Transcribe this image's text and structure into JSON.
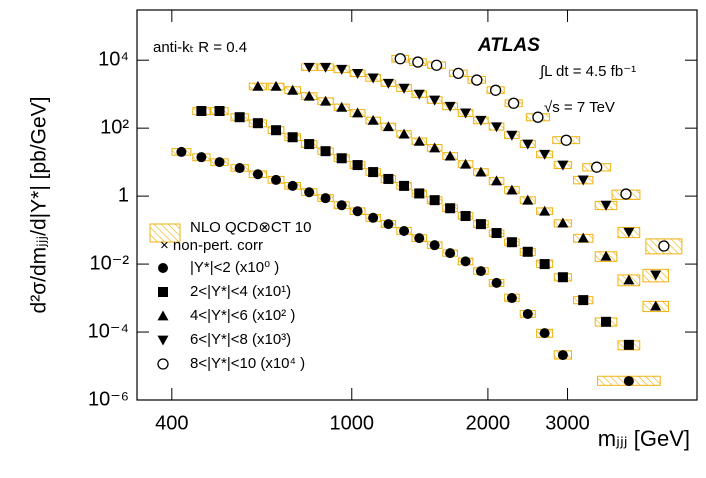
{
  "chart_data": {
    "type": "scatter",
    "xlabel": "mⱼⱼⱼ [GeV]",
    "ylabel": "d²σ/dmⱼⱼⱼ/d|Y*| [pb/GeV]",
    "annotations": [
      "anti-kₜ R = 0.4",
      "ATLAS",
      "∫L dt = 4.5 fb⁻¹",
      "√s = 7 TeV"
    ],
    "theory_legend": [
      "NLO QCD⊗CT 10",
      "× non-pert. corr"
    ],
    "theory_color": "#efb20f",
    "xscale": "log",
    "yscale": "log",
    "xlim": [
      335,
      5800
    ],
    "ylim": [
      1e-06,
      300000
    ],
    "xticks": [
      400,
      1000,
      2000,
      3000
    ],
    "yticks": [
      {
        "value": 1e-06,
        "label": "10⁻⁶"
      },
      {
        "value": 0.0001,
        "label": "10⁻⁴"
      },
      {
        "value": 0.01,
        "label": "10⁻²"
      },
      1,
      {
        "value": 100,
        "label": "10²"
      },
      {
        "value": 10000,
        "label": "10⁴"
      }
    ],
    "series": [
      {
        "name": "|Y*|<2 (x10⁰ )",
        "marker": "circle",
        "color": "#000000",
        "x": [
          420,
          465,
          510,
          565,
          620,
          680,
          740,
          805,
          875,
          950,
          1030,
          1115,
          1205,
          1305,
          1410,
          1525,
          1650,
          1785,
          1930,
          2090,
          2260,
          2450,
          2670,
          2930,
          4100
        ],
        "values": [
          20,
          14,
          10,
          6.7,
          4.4,
          3.0,
          2.0,
          1.3,
          0.87,
          0.54,
          0.36,
          0.23,
          0.15,
          0.094,
          0.058,
          0.036,
          0.021,
          0.012,
          0.0062,
          0.0028,
          0.001,
          0.00034,
          9.3e-05,
          2.1e-05,
          3.6e-06
        ],
        "theory": [
          [
            16,
            25
          ],
          [
            11,
            17.5
          ],
          [
            8,
            12.5
          ],
          [
            5.4,
            8.4
          ],
          [
            3.5,
            5.5
          ],
          [
            2.4,
            3.8
          ],
          [
            1.6,
            2.5
          ],
          [
            1.05,
            1.65
          ],
          [
            0.7,
            1.1
          ],
          [
            0.43,
            0.68
          ],
          [
            0.29,
            0.45
          ],
          [
            0.18,
            0.29
          ],
          [
            0.12,
            0.19
          ],
          [
            0.075,
            0.12
          ],
          [
            0.046,
            0.073
          ],
          [
            0.029,
            0.045
          ],
          [
            0.017,
            0.026
          ],
          [
            0.0095,
            0.015
          ],
          [
            0.005,
            0.0078
          ],
          [
            0.0022,
            0.0035
          ],
          [
            0.0008,
            0.0013
          ],
          [
            0.00027,
            0.00043
          ],
          [
            7e-05,
            0.00012
          ],
          [
            1.6e-05,
            2.8e-05
          ],
          [
            2.7e-06,
            5e-06
          ]
        ]
      },
      {
        "name": "2<|Y*|<4  (x10¹)",
        "marker": "square",
        "color": "#000000",
        "x": [
          465,
          510,
          565,
          620,
          680,
          740,
          805,
          875,
          950,
          1030,
          1115,
          1205,
          1305,
          1410,
          1525,
          1650,
          1785,
          1930,
          2090,
          2260,
          2450,
          2670,
          2930,
          3250,
          3650,
          4100
        ],
        "values": [
          320,
          320,
          210,
          140,
          87,
          54,
          34,
          21,
          13,
          8.2,
          5.1,
          3.2,
          2.0,
          1.2,
          0.76,
          0.44,
          0.26,
          0.15,
          0.082,
          0.044,
          0.023,
          0.01,
          0.0041,
          0.00087,
          0.0002,
          4.2e-05
        ],
        "theory": [
          [
            250,
            400
          ],
          [
            250,
            400
          ],
          [
            165,
            265
          ],
          [
            110,
            175
          ],
          [
            70,
            110
          ],
          [
            43,
            68
          ],
          [
            27,
            43
          ],
          [
            17,
            26
          ],
          [
            10.5,
            16.5
          ],
          [
            6.5,
            10.3
          ],
          [
            4.1,
            6.4
          ],
          [
            2.5,
            4
          ],
          [
            1.6,
            2.5
          ],
          [
            0.95,
            1.5
          ],
          [
            0.6,
            0.95
          ],
          [
            0.35,
            0.55
          ],
          [
            0.21,
            0.33
          ],
          [
            0.12,
            0.19
          ],
          [
            0.065,
            0.1
          ],
          [
            0.035,
            0.055
          ],
          [
            0.018,
            0.029
          ],
          [
            0.008,
            0.013
          ],
          [
            0.0032,
            0.0052
          ],
          [
            0.00068,
            0.0011
          ],
          [
            0.00015,
            0.00026
          ],
          [
            3e-05,
            5.5e-05
          ]
        ]
      },
      {
        "name": "4<|Y*|<6  (x10² )",
        "marker": "triangle-up",
        "color": "#000000",
        "x": [
          620,
          680,
          740,
          805,
          875,
          950,
          1030,
          1115,
          1205,
          1305,
          1410,
          1525,
          1650,
          1785,
          1930,
          2090,
          2260,
          2450,
          2670,
          2930,
          3250,
          3650,
          4100,
          4700
        ],
        "values": [
          1700,
          1700,
          1300,
          870,
          620,
          410,
          280,
          170,
          110,
          67,
          41,
          26,
          15,
          8.7,
          5.1,
          2.8,
          1.5,
          0.76,
          0.36,
          0.16,
          0.058,
          0.017,
          0.0034,
          0.00058
        ],
        "theory": [
          [
            1350,
            2100
          ],
          [
            1350,
            2100
          ],
          [
            1050,
            1650
          ],
          [
            700,
            1100
          ],
          [
            500,
            780
          ],
          [
            330,
            510
          ],
          [
            220,
            350
          ],
          [
            135,
            210
          ],
          [
            88,
            140
          ],
          [
            54,
            84
          ],
          [
            33,
            51
          ],
          [
            21,
            33
          ],
          [
            12,
            19
          ],
          [
            7,
            11
          ],
          [
            4.1,
            6.4
          ],
          [
            2.2,
            3.5
          ],
          [
            1.2,
            1.9
          ],
          [
            0.6,
            0.95
          ],
          [
            0.29,
            0.45
          ],
          [
            0.125,
            0.2
          ],
          [
            0.044,
            0.075
          ],
          [
            0.012,
            0.023
          ],
          [
            0.0023,
            0.0048
          ],
          [
            0.0004,
            0.0008
          ]
        ]
      },
      {
        "name": "6<|Y*|<8  (x10³)",
        "marker": "triangle-down",
        "color": "#000000",
        "x": [
          805,
          875,
          950,
          1030,
          1115,
          1205,
          1305,
          1410,
          1525,
          1650,
          1785,
          1930,
          2090,
          2260,
          2450,
          2670,
          2930,
          3250,
          3650,
          4100,
          4700
        ],
        "values": [
          6200,
          6200,
          5400,
          4100,
          3000,
          2100,
          1500,
          1000,
          670,
          440,
          280,
          170,
          110,
          62,
          34,
          17,
          8.2,
          3.0,
          0.54,
          0.087,
          0.0048
        ],
        "theory": [
          [
            5000,
            7800
          ],
          [
            5000,
            7800
          ],
          [
            4300,
            6800
          ],
          [
            3300,
            5100
          ],
          [
            2400,
            3800
          ],
          [
            1700,
            2600
          ],
          [
            1200,
            1900
          ],
          [
            800,
            1250
          ],
          [
            540,
            840
          ],
          [
            350,
            550
          ],
          [
            220,
            350
          ],
          [
            135,
            210
          ],
          [
            88,
            140
          ],
          [
            50,
            78
          ],
          [
            27,
            43
          ],
          [
            13.5,
            21
          ],
          [
            6.5,
            10.3
          ],
          [
            2.3,
            3.8
          ],
          [
            0.4,
            0.7
          ],
          [
            0.06,
            0.12
          ],
          [
            0.003,
            0.007
          ]
        ]
      },
      {
        "name": "8<|Y*|<10 (x10⁴ )",
        "marker": "circle-open",
        "color": "#000000",
        "x": [
          1280,
          1400,
          1540,
          1720,
          1890,
          2080,
          2280,
          2580,
          2980,
          3480,
          4040,
          4900
        ],
        "values": [
          11000,
          8800,
          7100,
          4100,
          2600,
          1300,
          540,
          210,
          44,
          7.1,
          1.15,
          0.034
        ],
        "theory": [
          [
            8800,
            13800
          ],
          [
            7000,
            11000
          ],
          [
            5700,
            8900
          ],
          [
            3300,
            5100
          ],
          [
            2100,
            3300
          ],
          [
            1050,
            1650
          ],
          [
            430,
            680
          ],
          [
            165,
            265
          ],
          [
            35,
            56
          ],
          [
            5.5,
            9
          ],
          [
            0.8,
            1.5
          ],
          [
            0.02,
            0.055
          ]
        ]
      }
    ]
  }
}
